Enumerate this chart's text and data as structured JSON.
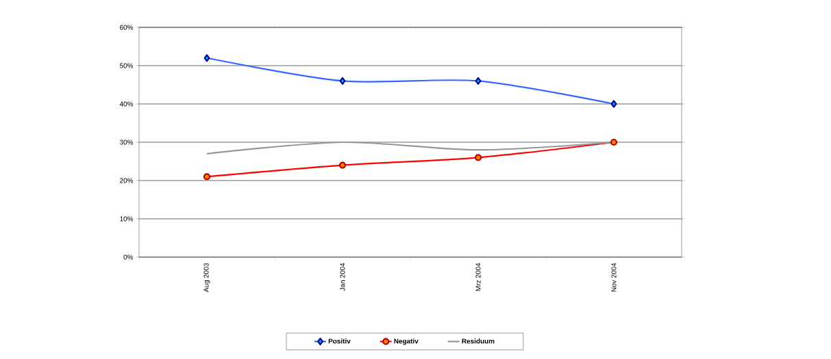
{
  "chart_data": {
    "type": "line",
    "categories": [
      "Aug 2003",
      "Jan 2004",
      "Mrz 2004",
      "Nov 2004"
    ],
    "series": [
      {
        "name": "Positiv",
        "color": "#3366ff",
        "marker": "diamond",
        "values": [
          52,
          46,
          46,
          40
        ]
      },
      {
        "name": "Negativ",
        "color": "#ff0000",
        "marker": "circle",
        "values": [
          21,
          24,
          26,
          30
        ]
      },
      {
        "name": "Residuum",
        "color": "#969696",
        "marker": "none",
        "values": [
          27,
          30,
          28,
          30
        ]
      }
    ],
    "ylim": [
      0,
      60
    ],
    "yticks": [
      {
        "value": 0,
        "label": "0%"
      },
      {
        "value": 10,
        "label": "10%"
      },
      {
        "value": 20,
        "label": "20%"
      },
      {
        "value": 30,
        "label": "30%"
      },
      {
        "value": 40,
        "label": "40%"
      },
      {
        "value": 50,
        "label": "50%"
      },
      {
        "value": 60,
        "label": "60%"
      }
    ],
    "grid": "y",
    "legend": "bottom",
    "line_style": "solid"
  }
}
